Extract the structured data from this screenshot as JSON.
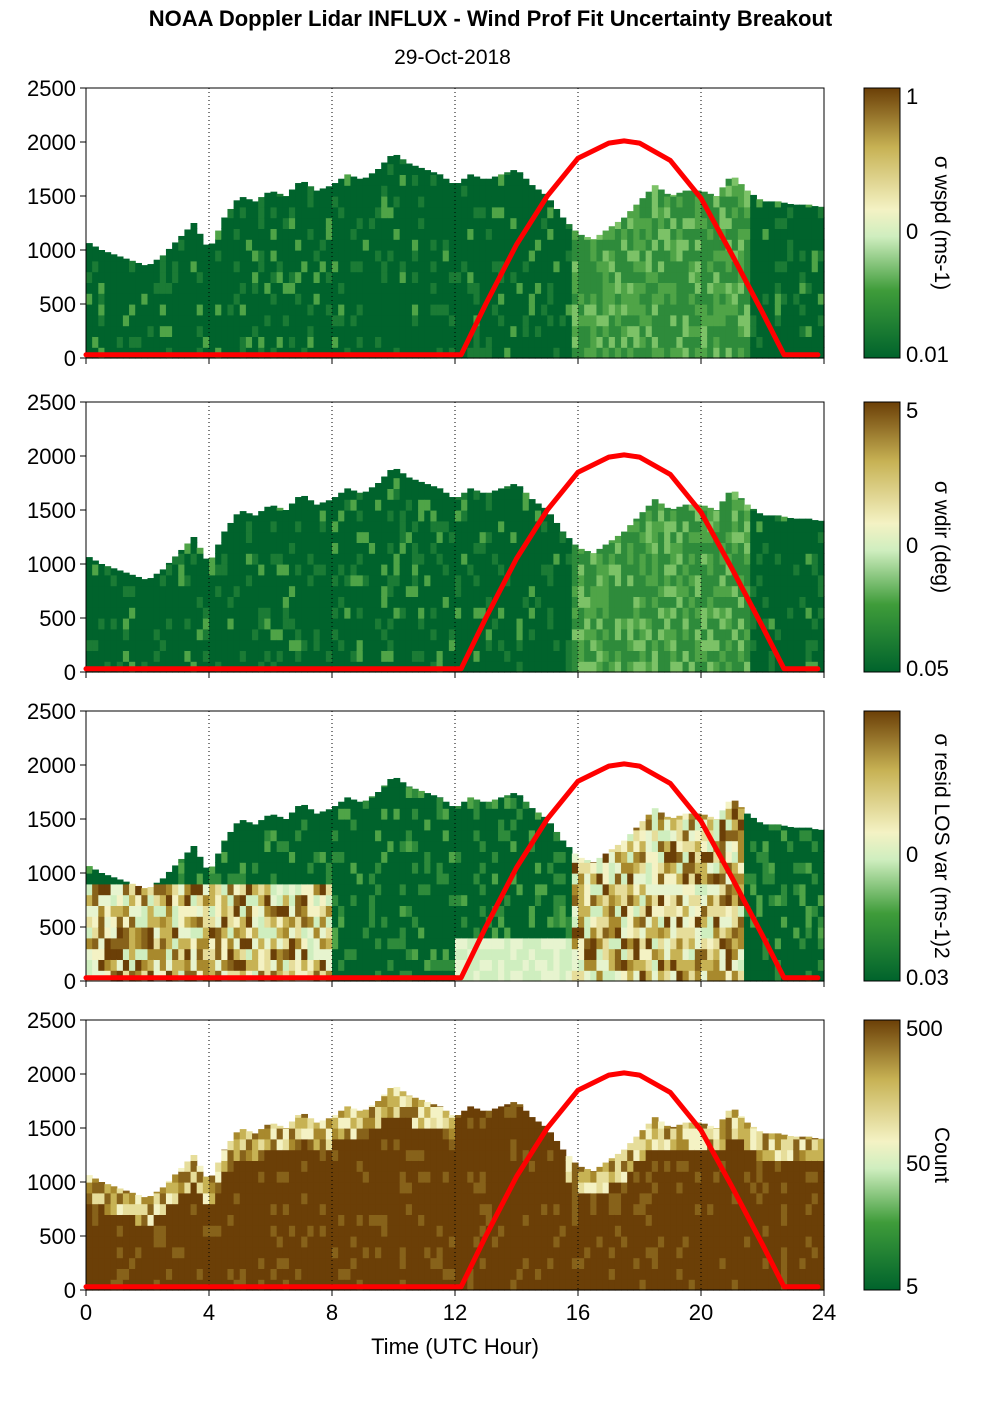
{
  "title": "NOAA Doppler Lidar INFLUX - Wind Prof Fit Uncertainty Breakout",
  "subtitle": "29-Oct-2018",
  "chart_data": {
    "type": "heatmap",
    "xlabel": "Time (UTC Hour)",
    "xlim": [
      0,
      24
    ],
    "xticks": [
      "0",
      "4",
      "8",
      "12",
      "16",
      "20",
      "24"
    ],
    "ylim": [
      0,
      2500
    ],
    "yticks": [
      "0",
      "500",
      "1000",
      "1500",
      "2000",
      "2500"
    ],
    "grid": "dotted vertical lines at 4-hour intervals",
    "colormap": [
      "#00632c",
      "#3f9c3a",
      "#cfeebf",
      "#f4f2c4",
      "#c7b254",
      "#6b3f07"
    ],
    "overlay": {
      "type": "line",
      "color": "#ff0000",
      "description_x": [
        0,
        12.2,
        13,
        14,
        15,
        16,
        17,
        17.5,
        18,
        19,
        20,
        21,
        22,
        22.7,
        23.8
      ],
      "y": [
        30,
        30,
        500,
        1050,
        1500,
        1850,
        1990,
        2010,
        1990,
        1830,
        1480,
        960,
        420,
        30,
        30
      ]
    },
    "panels": [
      {
        "name": "σ wspd (ms-1)",
        "colorbar_ticks": [
          "1",
          "0",
          "0.01"
        ]
      },
      {
        "name": "σ wdir (deg)",
        "colorbar_ticks": [
          "5",
          "0",
          "0.05"
        ]
      },
      {
        "name": "σ resid LOS var (ms-1)2",
        "colorbar_ticks": [
          "0",
          "0.03"
        ]
      },
      {
        "name": "Count",
        "colorbar_ticks": [
          "500",
          "50",
          "5"
        ]
      }
    ],
    "cloud_top": {
      "x": [
        0,
        0.5,
        1,
        1.5,
        2,
        2.5,
        3,
        3.5,
        4,
        4.5,
        5,
        5.5,
        6,
        6.5,
        7,
        7.5,
        8,
        8.5,
        9,
        9.5,
        10,
        10.5,
        11,
        11.5,
        12,
        12.5,
        13,
        13.5,
        14,
        14.5,
        15,
        15.5,
        16,
        16.5,
        17,
        17.5,
        18,
        18.5,
        19,
        19.5,
        20,
        20.5,
        21,
        21.5,
        22,
        22.5,
        23,
        23.5,
        23.8
      ],
      "y": [
        1080,
        1000,
        950,
        900,
        850,
        950,
        1100,
        1250,
        1000,
        1300,
        1500,
        1450,
        1550,
        1500,
        1650,
        1550,
        1600,
        1700,
        1650,
        1750,
        1900,
        1800,
        1750,
        1700,
        1600,
        1700,
        1650,
        1700,
        1750,
        1600,
        1500,
        1300,
        1150,
        1100,
        1200,
        1300,
        1450,
        1600,
        1500,
        1550,
        1550,
        1500,
        1700,
        1550,
        1450,
        1450,
        1420,
        1420,
        1400
      ]
    }
  }
}
